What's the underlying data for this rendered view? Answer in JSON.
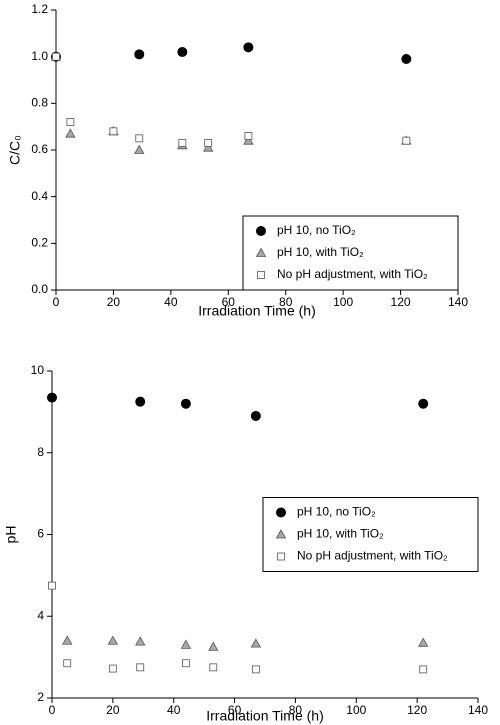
{
  "chart_data": [
    {
      "type": "scatter",
      "xlabel": "Irradiation Time (h)",
      "ylabel": "C/C₀",
      "xlim": [
        0,
        140
      ],
      "xticks": [
        0,
        20,
        40,
        60,
        80,
        100,
        120,
        140
      ],
      "ylim": [
        0,
        1.2
      ],
      "yticks": [
        {
          "value": 0,
          "label": "0.0"
        },
        0.2,
        0.4,
        0.6,
        0.8,
        {
          "value": 1,
          "label": "1.0"
        },
        1.2
      ],
      "legend": "lower right",
      "series": [
        {
          "name": "pH 10, no TiO₂",
          "marker": "circle",
          "color": "#000000",
          "x": [
            0,
            29,
            44,
            67,
            122
          ],
          "values": [
            1.0,
            1.01,
            1.02,
            1.04,
            0.99
          ]
        },
        {
          "name": "pH 10, with TiO₂",
          "marker": "triangle",
          "color": "#a8a8a8",
          "x": [
            0,
            5,
            20,
            29,
            44,
            53,
            67,
            122
          ],
          "values": [
            1.0,
            0.67,
            0.68,
            0.6,
            0.62,
            0.61,
            0.64,
            0.64
          ]
        },
        {
          "name": "No pH adjustment, with TiO₂",
          "marker": "square",
          "color": "#ffffff",
          "x": [
            0,
            5,
            20,
            29,
            44,
            53,
            67,
            122
          ],
          "values": [
            1.0,
            0.72,
            0.68,
            0.65,
            0.63,
            0.63,
            0.66,
            0.64
          ]
        }
      ]
    },
    {
      "type": "scatter",
      "xlabel": "Irradiation Time (h)",
      "ylabel": "pH",
      "xlim": [
        0,
        140
      ],
      "xticks": [
        0,
        20,
        40,
        60,
        80,
        100,
        120,
        140
      ],
      "ylim": [
        2,
        10
      ],
      "yticks": [
        2,
        4,
        6,
        8,
        10
      ],
      "legend": "right",
      "series": [
        {
          "name": "pH 10, no TiO₂",
          "marker": "circle",
          "color": "#000000",
          "x": [
            0,
            29,
            44,
            67,
            122
          ],
          "values": [
            9.35,
            9.25,
            9.2,
            8.9,
            9.2
          ]
        },
        {
          "name": "pH 10, with TiO₂",
          "marker": "triangle",
          "color": "#a8a8a8",
          "x": [
            5,
            20,
            29,
            44,
            53,
            67,
            122
          ],
          "values": [
            3.4,
            3.4,
            3.38,
            3.3,
            3.25,
            3.33,
            3.35
          ]
        },
        {
          "name": "No pH adjustment, with TiO₂",
          "marker": "square",
          "color": "#ffffff",
          "x": [
            0,
            5,
            20,
            29,
            44,
            53,
            67,
            122
          ],
          "values": [
            4.75,
            2.85,
            2.72,
            2.75,
            2.85,
            2.75,
            2.7,
            2.7
          ]
        }
      ]
    }
  ]
}
